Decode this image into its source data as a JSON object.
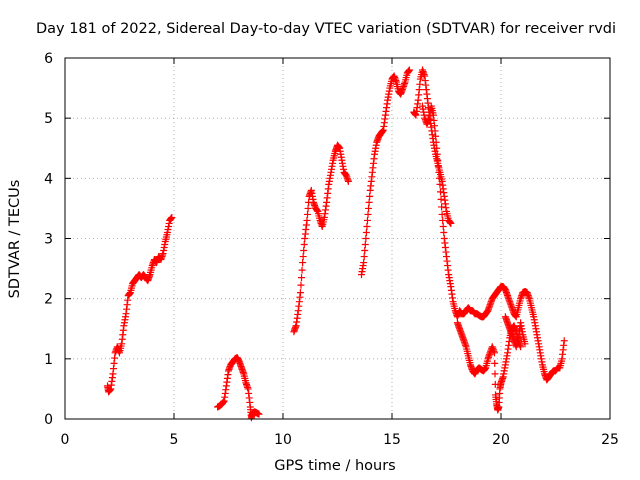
{
  "chart_data": {
    "type": "scatter",
    "title": "Day 181 of 2022, Sidereal Day-to-day VTEC variation (SDTVAR) for receiver rvdi",
    "xlabel": "GPS time / hours",
    "ylabel": "SDTVAR / TECUs",
    "xlim": [
      0,
      25
    ],
    "ylim": [
      0,
      6
    ],
    "xticks": [
      0,
      5,
      10,
      15,
      20,
      25
    ],
    "yticks": [
      0,
      1,
      2,
      3,
      4,
      5,
      6
    ],
    "grid": true,
    "marker": "+",
    "series": [
      {
        "name": "SDTVAR",
        "color": "#ff0000",
        "segments": [
          [
            [
              1.95,
              0.55
            ],
            [
              2.0,
              0.45
            ],
            [
              2.1,
              0.5
            ],
            [
              2.2,
              0.75
            ],
            [
              2.3,
              1.1
            ],
            [
              2.4,
              1.2
            ],
            [
              2.5,
              1.1
            ],
            [
              2.6,
              1.25
            ],
            [
              2.7,
              1.55
            ],
            [
              2.8,
              1.75
            ],
            [
              2.9,
              2.05
            ],
            [
              3.0,
              2.1
            ],
            [
              3.1,
              2.25
            ],
            [
              3.2,
              2.3
            ],
            [
              3.3,
              2.35
            ],
            [
              3.4,
              2.4
            ],
            [
              3.5,
              2.35
            ],
            [
              3.6,
              2.4
            ],
            [
              3.7,
              2.35
            ],
            [
              3.8,
              2.3
            ],
            [
              3.9,
              2.4
            ],
            [
              4.0,
              2.55
            ],
            [
              4.1,
              2.65
            ],
            [
              4.2,
              2.6
            ],
            [
              4.3,
              2.7
            ],
            [
              4.4,
              2.65
            ],
            [
              4.5,
              2.75
            ],
            [
              4.6,
              2.95
            ],
            [
              4.7,
              3.1
            ],
            [
              4.8,
              3.3
            ],
            [
              4.9,
              3.35
            ]
          ],
          [
            [
              7.0,
              0.2
            ],
            [
              7.1,
              0.22
            ],
            [
              7.2,
              0.25
            ],
            [
              7.3,
              0.3
            ],
            [
              7.4,
              0.55
            ],
            [
              7.5,
              0.8
            ],
            [
              7.6,
              0.9
            ],
            [
              7.7,
              0.95
            ],
            [
              7.8,
              1.0
            ],
            [
              7.9,
              1.02
            ],
            [
              8.0,
              0.95
            ],
            [
              8.1,
              0.85
            ],
            [
              8.2,
              0.75
            ],
            [
              8.3,
              0.6
            ],
            [
              8.4,
              0.5
            ],
            [
              8.5,
              0.2
            ],
            [
              8.55,
              0.02
            ],
            [
              8.6,
              0.1
            ],
            [
              8.7,
              0.12
            ],
            [
              8.8,
              0.1
            ],
            [
              8.9,
              0.08
            ]
          ],
          [
            [
              10.5,
              1.45
            ],
            [
              10.6,
              1.55
            ],
            [
              10.7,
              1.8
            ],
            [
              10.8,
              2.1
            ],
            [
              10.9,
              2.6
            ],
            [
              11.0,
              3.0
            ],
            [
              11.1,
              3.3
            ],
            [
              11.2,
              3.7
            ],
            [
              11.3,
              3.8
            ],
            [
              11.4,
              3.6
            ],
            [
              11.5,
              3.5
            ],
            [
              11.6,
              3.45
            ],
            [
              11.7,
              3.3
            ],
            [
              11.8,
              3.2
            ],
            [
              11.9,
              3.35
            ],
            [
              12.0,
              3.6
            ],
            [
              12.1,
              3.9
            ],
            [
              12.2,
              4.1
            ],
            [
              12.3,
              4.3
            ],
            [
              12.4,
              4.45
            ],
            [
              12.5,
              4.55
            ],
            [
              12.6,
              4.5
            ],
            [
              12.7,
              4.3
            ],
            [
              12.8,
              4.1
            ],
            [
              12.9,
              4.05
            ],
            [
              13.0,
              3.95
            ]
          ],
          [
            [
              13.6,
              2.4
            ],
            [
              13.7,
              2.6
            ],
            [
              13.8,
              3.0
            ],
            [
              13.9,
              3.4
            ],
            [
              14.0,
              3.8
            ],
            [
              14.1,
              4.1
            ],
            [
              14.2,
              4.4
            ],
            [
              14.3,
              4.6
            ],
            [
              14.4,
              4.7
            ],
            [
              14.5,
              4.75
            ],
            [
              14.6,
              4.8
            ],
            [
              14.7,
              5.05
            ],
            [
              14.8,
              5.3
            ],
            [
              14.9,
              5.5
            ],
            [
              15.0,
              5.65
            ],
            [
              15.1,
              5.7
            ],
            [
              15.2,
              5.6
            ],
            [
              15.3,
              5.45
            ],
            [
              15.4,
              5.4
            ],
            [
              15.5,
              5.5
            ],
            [
              15.6,
              5.6
            ],
            [
              15.7,
              5.75
            ],
            [
              15.8,
              5.8
            ]
          ],
          [
            [
              16.0,
              5.1
            ],
            [
              16.1,
              5.05
            ],
            [
              16.2,
              5.3
            ],
            [
              16.3,
              5.65
            ],
            [
              16.4,
              5.8
            ],
            [
              16.5,
              5.7
            ],
            [
              16.6,
              5.4
            ],
            [
              16.7,
              5.1
            ],
            [
              16.8,
              4.85
            ],
            [
              16.9,
              4.6
            ],
            [
              17.0,
              4.4
            ],
            [
              17.1,
              4.25
            ],
            [
              17.2,
              4.1
            ],
            [
              17.3,
              3.95
            ],
            [
              17.4,
              3.7
            ],
            [
              17.5,
              3.45
            ],
            [
              17.6,
              3.3
            ],
            [
              17.7,
              3.25
            ]
          ],
          [
            [
              16.4,
              5.2
            ],
            [
              16.5,
              5.0
            ],
            [
              16.6,
              4.9
            ],
            [
              16.7,
              5.0
            ],
            [
              16.8,
              5.2
            ],
            [
              16.9,
              5.05
            ],
            [
              17.0,
              4.7
            ],
            [
              17.1,
              4.3
            ],
            [
              17.2,
              3.9
            ],
            [
              17.3,
              3.4
            ],
            [
              17.4,
              3.0
            ],
            [
              17.5,
              2.7
            ],
            [
              17.6,
              2.4
            ],
            [
              17.7,
              2.2
            ],
            [
              17.8,
              1.95
            ],
            [
              17.9,
              1.8
            ],
            [
              18.0,
              1.7
            ],
            [
              18.1,
              1.8
            ],
            [
              18.2,
              1.75
            ],
            [
              18.3,
              1.75
            ],
            [
              18.4,
              1.8
            ],
            [
              18.5,
              1.85
            ],
            [
              18.6,
              1.8
            ],
            [
              18.7,
              1.8
            ],
            [
              18.8,
              1.75
            ],
            [
              18.9,
              1.75
            ],
            [
              19.0,
              1.72
            ],
            [
              19.1,
              1.7
            ],
            [
              19.2,
              1.7
            ],
            [
              19.3,
              1.75
            ],
            [
              19.4,
              1.8
            ],
            [
              19.5,
              1.9
            ],
            [
              19.6,
              2.0
            ],
            [
              19.7,
              2.05
            ],
            [
              19.8,
              2.1
            ],
            [
              19.9,
              2.15
            ],
            [
              20.0,
              2.2
            ],
            [
              20.1,
              2.2
            ],
            [
              20.2,
              2.15
            ],
            [
              20.3,
              2.05
            ],
            [
              20.4,
              1.95
            ],
            [
              20.5,
              1.85
            ],
            [
              20.6,
              1.75
            ],
            [
              20.7,
              1.7
            ],
            [
              20.8,
              1.85
            ],
            [
              20.9,
              2.0
            ],
            [
              21.0,
              2.1
            ],
            [
              21.1,
              2.12
            ],
            [
              21.2,
              2.1
            ],
            [
              21.3,
              2.0
            ],
            [
              21.4,
              1.85
            ],
            [
              21.5,
              1.7
            ],
            [
              21.6,
              1.5
            ],
            [
              21.7,
              1.3
            ],
            [
              21.8,
              1.1
            ],
            [
              21.9,
              0.9
            ],
            [
              22.0,
              0.75
            ],
            [
              22.1,
              0.65
            ],
            [
              22.2,
              0.7
            ],
            [
              22.3,
              0.75
            ],
            [
              22.4,
              0.8
            ],
            [
              22.5,
              0.8
            ],
            [
              22.6,
              0.85
            ],
            [
              22.7,
              0.85
            ],
            [
              22.8,
              1.0
            ],
            [
              22.9,
              1.3
            ]
          ],
          [
            [
              18.0,
              1.6
            ],
            [
              18.1,
              1.5
            ],
            [
              18.2,
              1.4
            ],
            [
              18.3,
              1.3
            ],
            [
              18.4,
              1.2
            ],
            [
              18.5,
              1.05
            ],
            [
              18.6,
              0.9
            ],
            [
              18.7,
              0.8
            ],
            [
              18.8,
              0.75
            ],
            [
              18.9,
              0.82
            ],
            [
              19.0,
              0.85
            ],
            [
              19.1,
              0.82
            ],
            [
              19.2,
              0.8
            ],
            [
              19.3,
              0.85
            ],
            [
              19.4,
              1.0
            ],
            [
              19.5,
              1.1
            ],
            [
              19.6,
              1.2
            ],
            [
              19.7,
              1.1
            ],
            [
              19.75,
              0.4
            ],
            [
              19.8,
              0.25
            ],
            [
              19.85,
              0.15
            ],
            [
              19.9,
              0.2
            ],
            [
              19.95,
              0.5
            ],
            [
              20.0,
              0.6
            ],
            [
              20.1,
              0.7
            ],
            [
              20.2,
              0.9
            ],
            [
              20.3,
              1.1
            ],
            [
              20.4,
              1.35
            ],
            [
              20.5,
              1.5
            ],
            [
              20.6,
              1.55
            ],
            [
              20.7,
              1.45
            ],
            [
              20.8,
              1.3
            ],
            [
              20.9,
              1.2
            ]
          ],
          [
            [
              20.2,
              1.7
            ],
            [
              20.3,
              1.6
            ],
            [
              20.4,
              1.5
            ],
            [
              20.5,
              1.4
            ],
            [
              20.6,
              1.3
            ],
            [
              20.7,
              1.2
            ],
            [
              20.8,
              1.35
            ],
            [
              20.9,
              1.6
            ],
            [
              21.0,
              1.4
            ],
            [
              21.1,
              1.25
            ]
          ]
        ]
      }
    ]
  }
}
